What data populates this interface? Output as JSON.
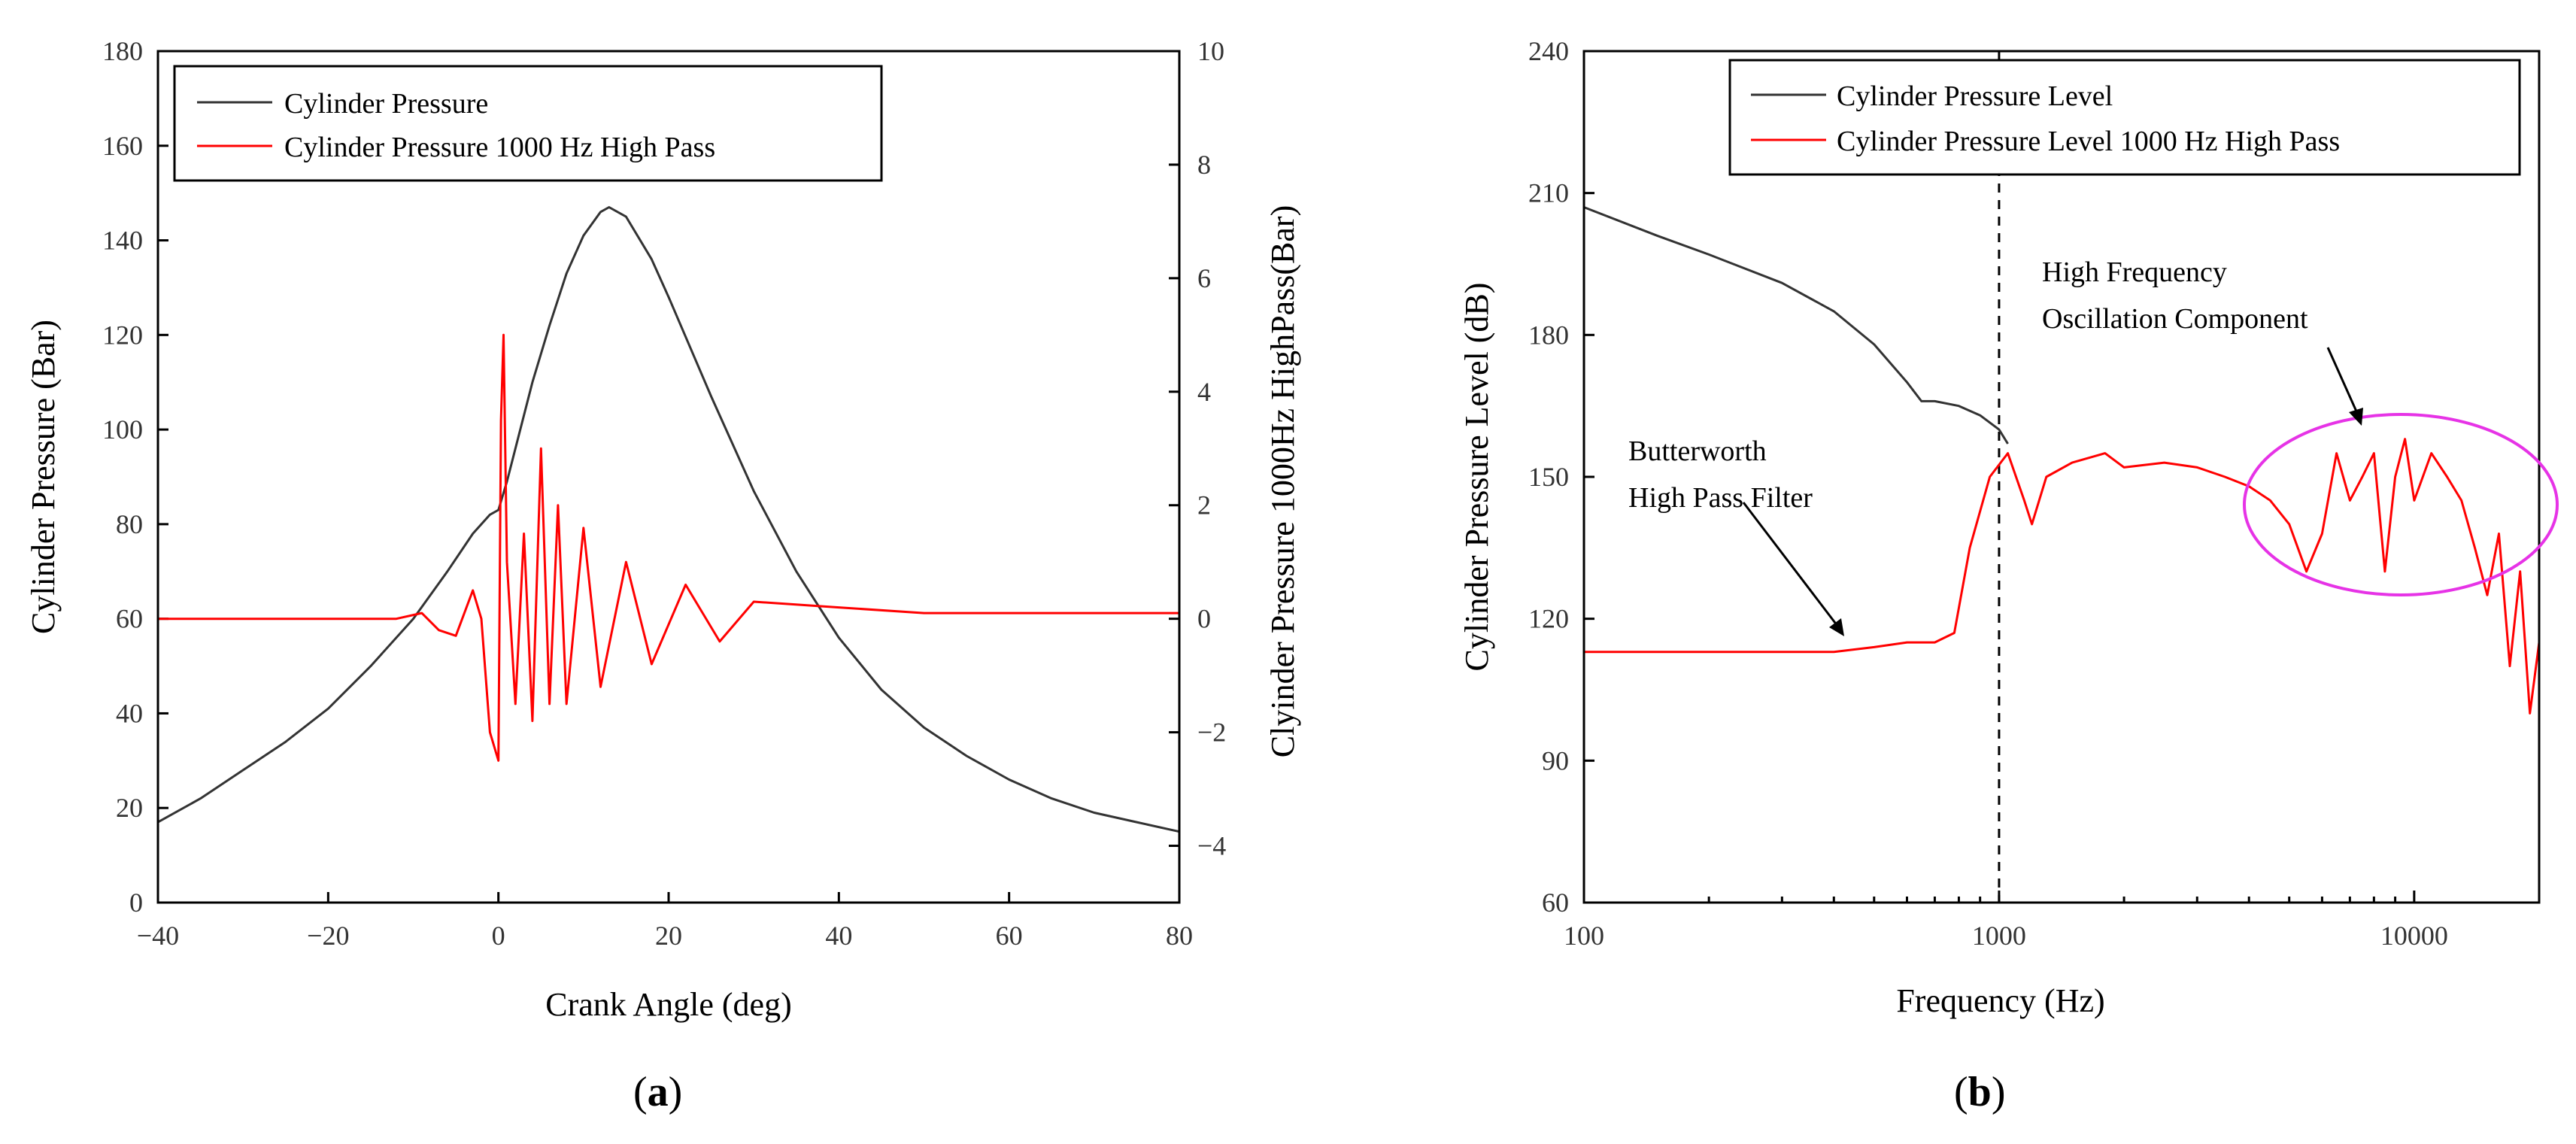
{
  "chart_data": [
    {
      "panel": "a",
      "type": "line",
      "xlabel": "Crank Angle (deg)",
      "ylabel": "Cylinder Pressure (Bar)",
      "y2label": "Clyinder Pressure 1000Hz HighPass(Bar)",
      "xlim": [
        -40,
        80
      ],
      "ylim": [
        0,
        180
      ],
      "y2lim": [
        -5,
        10
      ],
      "xticks": [
        "-40",
        "-20",
        "0",
        "20",
        "40",
        "60",
        "80"
      ],
      "yticks": [
        "0",
        "20",
        "40",
        "60",
        "80",
        "100",
        "120",
        "140",
        "160",
        "180"
      ],
      "y2ticks": [
        "-4",
        "-2",
        "0",
        "2",
        "4",
        "6",
        "8",
        "10"
      ],
      "series": [
        {
          "name": "Cylinder Pressure",
          "color": "#333333",
          "axis": "y",
          "x": [
            -40,
            -35,
            -30,
            -25,
            -20,
            -15,
            -10,
            -6,
            -3,
            -1,
            0,
            1,
            2,
            4,
            6,
            8,
            10,
            12,
            13,
            15,
            18,
            20,
            25,
            30,
            35,
            40,
            45,
            50,
            55,
            60,
            65,
            70,
            75,
            80
          ],
          "values": [
            17,
            22,
            28,
            34,
            41,
            50,
            60,
            70,
            78,
            82,
            83,
            89,
            96,
            110,
            122,
            133,
            141,
            146,
            147,
            145,
            136,
            128,
            107,
            87,
            70,
            56,
            45,
            37,
            31,
            26,
            22,
            19,
            17,
            15
          ]
        },
        {
          "name": "Cylinder Pressure 1000 Hz High Pass",
          "color": "#ff0000",
          "axis": "y2",
          "x": [
            -40,
            -30,
            -20,
            -12,
            -9,
            -7,
            -5,
            -3,
            -2,
            -1,
            0,
            0.3,
            0.6,
            1,
            2,
            3,
            4,
            5,
            6,
            7,
            8,
            10,
            12,
            15,
            18,
            22,
            26,
            30,
            40,
            50,
            60,
            70,
            80
          ],
          "values": [
            0,
            0,
            0,
            0,
            0.1,
            -0.2,
            -0.3,
            0.5,
            0,
            -2.0,
            -2.5,
            3.5,
            5.0,
            1.0,
            -1.5,
            1.5,
            -1.8,
            3.0,
            -1.5,
            2.0,
            -1.5,
            1.6,
            -1.2,
            1.0,
            -0.8,
            0.6,
            -0.4,
            0.3,
            0.2,
            0.1,
            0.1,
            0.1,
            0.1
          ]
        }
      ]
    },
    {
      "panel": "b",
      "type": "line",
      "xscale": "log",
      "xlabel": "Frequency (Hz)",
      "ylabel": "Cylinder Pressure Level (dB)",
      "xlim": [
        100,
        20000
      ],
      "ylim": [
        60,
        240
      ],
      "xticks": [
        "100",
        "1000",
        "10000"
      ],
      "yticks": [
        "60",
        "90",
        "120",
        "150",
        "180",
        "210",
        "240"
      ],
      "vline": 1000,
      "series": [
        {
          "name": "Cylinder Pressure Level",
          "color": "#333333",
          "x": [
            100,
            150,
            200,
            300,
            400,
            500,
            600,
            650,
            700,
            800,
            900,
            1000,
            1050
          ],
          "values": [
            207,
            201,
            197,
            191,
            185,
            178,
            170,
            166,
            166,
            165,
            163,
            160,
            157
          ]
        },
        {
          "name": "Cylinder Pressure Level 1000 Hz High Pass",
          "color": "#ff0000",
          "x": [
            100,
            200,
            300,
            400,
            500,
            600,
            700,
            780,
            850,
            950,
            1050,
            1150,
            1200,
            1300,
            1500,
            1800,
            2000,
            2500,
            3000,
            3500,
            4000,
            4500,
            5000,
            5500,
            6000,
            6500,
            7000,
            7500,
            8000,
            8500,
            9000,
            9500,
            10000,
            11000,
            12000,
            13000,
            14000,
            15000,
            16000,
            17000,
            18000,
            19000,
            20000
          ],
          "values": [
            113,
            113,
            113,
            113,
            114,
            115,
            115,
            117,
            135,
            150,
            155,
            145,
            140,
            150,
            153,
            155,
            152,
            153,
            152,
            150,
            148,
            145,
            140,
            130,
            138,
            155,
            145,
            150,
            155,
            130,
            150,
            158,
            145,
            155,
            150,
            145,
            135,
            125,
            138,
            110,
            130,
            100,
            115
          ]
        }
      ],
      "annotations": [
        {
          "lines": [
            "High Frequency",
            "Oscillation Component"
          ]
        },
        {
          "lines": [
            "Butterworth",
            "High Pass Filter"
          ]
        }
      ]
    }
  ],
  "legend_a": [
    "Cylinder Pressure",
    "Cylinder Pressure 1000 Hz High Pass"
  ],
  "legend_b": [
    "Cylinder Pressure Level",
    "Cylinder Pressure Level 1000 Hz High Pass"
  ],
  "panel_labels": {
    "a": "a",
    "b": "b"
  },
  "colors": {
    "black_line": "#333333",
    "red_line": "#ff0000",
    "ellipse": "#e633e6"
  }
}
